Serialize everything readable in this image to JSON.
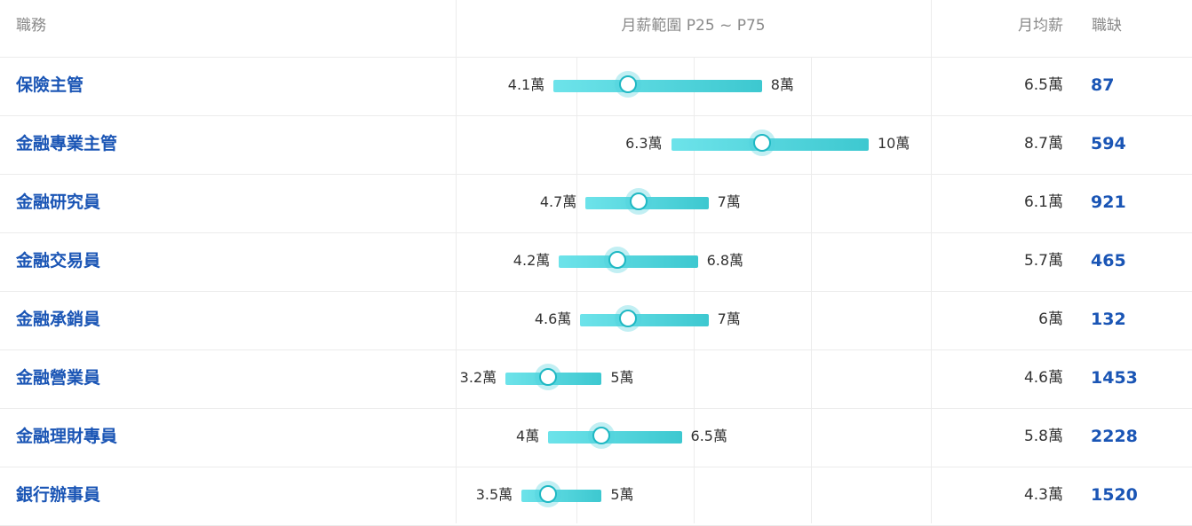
{
  "header": {
    "job_label": "職務",
    "range_label": "月薪範圍 P25 ~ P75",
    "avg_label": "月均薪",
    "openings_label": "職缺"
  },
  "scale_unit": "萬",
  "rows": [
    {
      "title": "保險主管",
      "p25": 4.1,
      "p75": 8,
      "median": 5.5,
      "low": "4.1萬",
      "high": "8萬",
      "avg": "6.5萬",
      "openings": "87"
    },
    {
      "title": "金融專業主管",
      "p25": 6.3,
      "p75": 10,
      "median": 8.0,
      "low": "6.3萬",
      "high": "10萬",
      "avg": "8.7萬",
      "openings": "594"
    },
    {
      "title": "金融研究員",
      "p25": 4.7,
      "p75": 7,
      "median": 5.7,
      "low": "4.7萬",
      "high": "7萬",
      "avg": "6.1萬",
      "openings": "921"
    },
    {
      "title": "金融交易員",
      "p25": 4.2,
      "p75": 6.8,
      "median": 5.3,
      "low": "4.2萬",
      "high": "6.8萬",
      "avg": "5.7萬",
      "openings": "465"
    },
    {
      "title": "金融承銷員",
      "p25": 4.6,
      "p75": 7,
      "median": 5.5,
      "low": "4.6萬",
      "high": "7萬",
      "avg": "6萬",
      "openings": "132"
    },
    {
      "title": "金融營業員",
      "p25": 3.2,
      "p75": 5,
      "median": 4.0,
      "low": "3.2萬",
      "high": "5萬",
      "avg": "4.6萬",
      "openings": "1453"
    },
    {
      "title": "金融理財專員",
      "p25": 4,
      "p75": 6.5,
      "median": 5.0,
      "low": "4萬",
      "high": "6.5萬",
      "avg": "5.8萬",
      "openings": "2228"
    },
    {
      "title": "銀行辦事員",
      "p25": 3.5,
      "p75": 5,
      "median": 4.0,
      "low": "3.5萬",
      "high": "5萬",
      "avg": "4.3萬",
      "openings": "1520"
    }
  ]
}
